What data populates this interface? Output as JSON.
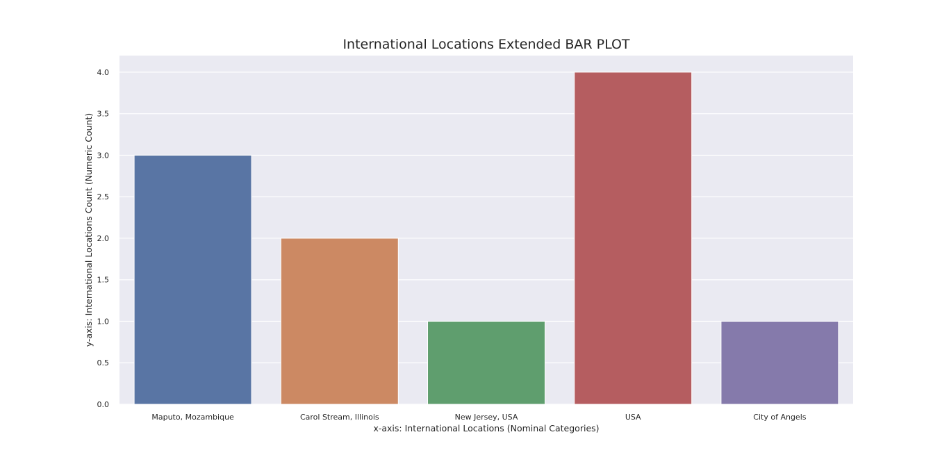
{
  "chart_data": {
    "type": "bar",
    "title": "International Locations Extended BAR PLOT",
    "xlabel": "x-axis: International Locations (Nominal Categories)",
    "ylabel": "y-axis: International Locations Count (Numeric Count)",
    "categories": [
      "Maputo, Mozambique",
      "Carol Stream, Illinois",
      "New Jersey, USA",
      "USA",
      "City of Angels"
    ],
    "values": [
      3,
      2,
      1,
      4,
      1
    ],
    "colors": [
      "#5975a4",
      "#cc8963",
      "#5f9e6e",
      "#b55d60",
      "#857aab"
    ],
    "ylim": [
      0,
      4.2
    ],
    "yticks": [
      "0.0",
      "0.5",
      "1.0",
      "1.5",
      "2.0",
      "2.5",
      "3.0",
      "3.5",
      "4.0"
    ],
    "grid": true,
    "background": "#eaeaf2"
  }
}
